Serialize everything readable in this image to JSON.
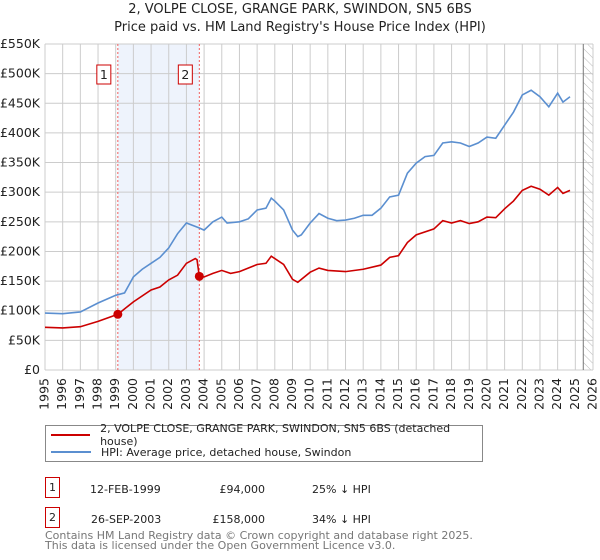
{
  "chart_data": {
    "type": "line",
    "title": "2, VOLPE CLOSE, GRANGE PARK, SWINDON, SN5 6BS",
    "subtitle": "Price paid vs. HM Land Registry's House Price Index (HPI)",
    "xlim": [
      1995,
      2026
    ],
    "ylim": [
      0,
      550000
    ],
    "x_ticks": [
      "1995",
      "1996",
      "1997",
      "1998",
      "1999",
      "2000",
      "2001",
      "2002",
      "2003",
      "2004",
      "2005",
      "2006",
      "2007",
      "2008",
      "2009",
      "2010",
      "2011",
      "2012",
      "2013",
      "2014",
      "2015",
      "2016",
      "2017",
      "2018",
      "2019",
      "2020",
      "2021",
      "2022",
      "2023",
      "2024",
      "2025",
      "2026"
    ],
    "y_ticks": [
      {
        "v": 0,
        "label": "£0"
      },
      {
        "v": 50000,
        "label": "£50K"
      },
      {
        "v": 100000,
        "label": "£100K"
      },
      {
        "v": 150000,
        "label": "£150K"
      },
      {
        "v": 200000,
        "label": "£200K"
      },
      {
        "v": 250000,
        "label": "£250K"
      },
      {
        "v": 300000,
        "label": "£300K"
      },
      {
        "v": 350000,
        "label": "£350K"
      },
      {
        "v": 400000,
        "label": "£400K"
      },
      {
        "v": 450000,
        "label": "£450K"
      },
      {
        "v": 500000,
        "label": "£500K"
      },
      {
        "v": 550000,
        "label": "£550K"
      }
    ],
    "grid": true,
    "shaded_range": [
      1999.12,
      2003.73
    ],
    "forecast_hatch_from": 2025.45,
    "series": [
      {
        "name": "2, VOLPE CLOSE, GRANGE PARK, SWINDON, SN5 6BS (detached house)",
        "color": "#cc0000",
        "x": [
          1995,
          1996,
          1997,
          1998,
          1999.12,
          2000,
          2001,
          2001.5,
          2002,
          2002.5,
          2003,
          2003.5,
          2003.6,
          2003.73,
          2004,
          2004.5,
          2005,
          2005.5,
          2006,
          2007,
          2007.5,
          2007.8,
          2008.5,
          2009,
          2009.3,
          2010,
          2010.5,
          2011,
          2012,
          2013,
          2014,
          2014.5,
          2015,
          2015.5,
          2016,
          2017,
          2017.5,
          2018,
          2018.5,
          2019,
          2019.5,
          2020,
          2020.5,
          2021,
          2021.5,
          2022,
          2022.5,
          2023,
          2023.5,
          2024,
          2024.3,
          2024.7
        ],
        "y": [
          72000,
          71000,
          73000,
          82000,
          94000,
          115000,
          135000,
          140000,
          152000,
          160000,
          180000,
          188000,
          186000,
          158000,
          157000,
          163000,
          168000,
          163000,
          166000,
          178000,
          180000,
          192000,
          178000,
          153000,
          148000,
          165000,
          172000,
          168000,
          166000,
          170000,
          177000,
          190000,
          193000,
          215000,
          228000,
          238000,
          252000,
          248000,
          252000,
          247000,
          250000,
          258000,
          257000,
          272000,
          285000,
          303000,
          310000,
          305000,
          295000,
          308000,
          298000,
          303000
        ]
      },
      {
        "name": "HPI: Average price, detached house, Swindon",
        "color": "#5b8fd0",
        "x": [
          1995,
          1996,
          1997,
          1998,
          1999,
          1999.5,
          2000,
          2000.5,
          2001,
          2001.5,
          2002,
          2002.5,
          2003,
          2003.7,
          2004,
          2004.5,
          2005,
          2005.3,
          2006,
          2006.5,
          2007,
          2007.5,
          2007.8,
          2008,
          2008.5,
          2009,
          2009.3,
          2009.5,
          2010,
          2010.5,
          2011,
          2011.5,
          2012,
          2012.5,
          2013,
          2013.5,
          2014,
          2014.5,
          2015,
          2015.5,
          2016,
          2016.5,
          2017,
          2017.5,
          2018,
          2018.5,
          2019,
          2019.5,
          2020,
          2020.5,
          2021,
          2021.5,
          2022,
          2022.5,
          2023,
          2023.5,
          2024,
          2024.3,
          2024.7
        ],
        "y": [
          96000,
          95000,
          98000,
          113000,
          126000,
          130000,
          157000,
          170000,
          180000,
          190000,
          206000,
          230000,
          248000,
          240000,
          236000,
          250000,
          258000,
          248000,
          250000,
          255000,
          270000,
          273000,
          290000,
          285000,
          270000,
          236000,
          225000,
          228000,
          248000,
          264000,
          256000,
          252000,
          253000,
          256000,
          261000,
          261000,
          273000,
          292000,
          295000,
          332000,
          349000,
          360000,
          362000,
          383000,
          385000,
          383000,
          377000,
          383000,
          393000,
          391000,
          413000,
          435000,
          464000,
          472000,
          461000,
          444000,
          467000,
          452000,
          461000
        ]
      }
    ],
    "annotations": [
      {
        "label": "1",
        "x": 1999.12,
        "y": 94000
      },
      {
        "label": "2",
        "x": 2003.73,
        "y": 158000
      }
    ]
  },
  "transactions": [
    {
      "num": "1",
      "date": "12-FEB-1999",
      "price": "£94,000",
      "hpi": "25% ↓ HPI"
    },
    {
      "num": "2",
      "date": "26-SEP-2003",
      "price": "£158,000",
      "hpi": "34% ↓ HPI"
    }
  ],
  "footer": [
    "Contains HM Land Registry data © Crown copyright and database right 2025.",
    "This data is licensed under the Open Government Licence v3.0."
  ]
}
